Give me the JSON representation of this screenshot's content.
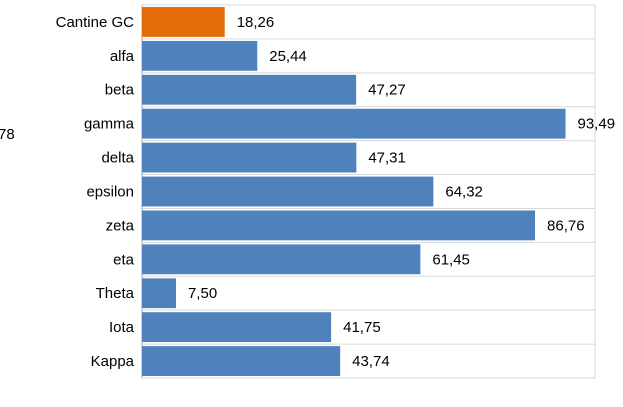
{
  "chart_data": {
    "type": "barh",
    "annotation": "78",
    "categories": [
      "Cantine GC",
      "alfa",
      "beta",
      "gamma",
      "delta",
      "epsilon",
      "zeta",
      "eta",
      "Theta",
      "Iota",
      "Kappa"
    ],
    "values": [
      18.26,
      25.44,
      47.27,
      93.49,
      47.31,
      64.32,
      86.76,
      61.45,
      7.5,
      41.75,
      43.74
    ],
    "value_labels": [
      "18,26",
      "25,44",
      "47,27",
      "93,49",
      "47,31",
      "64,32",
      "86,76",
      "61,45",
      "7,50",
      "41,75",
      "43,74"
    ],
    "colors": [
      "#e46c0a",
      "#4f81bd",
      "#4f81bd",
      "#4f81bd",
      "#4f81bd",
      "#4f81bd",
      "#4f81bd",
      "#4f81bd",
      "#4f81bd",
      "#4f81bd",
      "#4f81bd"
    ],
    "label_colors": [
      "#c00000",
      "#000000",
      "#000000",
      "#000000",
      "#000000",
      "#000000",
      "#000000",
      "#000000",
      "#000000",
      "#000000",
      "#000000"
    ],
    "xlim": [
      0,
      100
    ],
    "grid": true
  }
}
